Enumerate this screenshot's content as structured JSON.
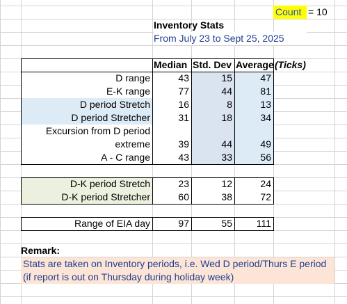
{
  "count": {
    "label": "Count",
    "value": "= 10"
  },
  "header": {
    "title": "Inventory Stats",
    "subtitle": "From July 23 to Sept 25, 2025"
  },
  "table": {
    "columns": [
      "Median",
      "Std. Dev",
      "Average",
      "(Ticks)"
    ],
    "groups": [
      {
        "rows": [
          {
            "label": "D range",
            "values": [
              43,
              15,
              47
            ]
          },
          {
            "label": "E-K range",
            "values": [
              77,
              44,
              81
            ]
          },
          {
            "label": "D period Stretch",
            "values": [
              16,
              8,
              13
            ]
          },
          {
            "label": "D period Stretcher",
            "values": [
              31,
              18,
              34
            ]
          },
          {
            "label": "Excursion from D period extreme",
            "values": [
              39,
              44,
              49
            ]
          },
          {
            "label": "A - C range",
            "values": [
              43,
              33,
              56
            ]
          }
        ]
      },
      {
        "rows": [
          {
            "label": "D-K period Stretch",
            "values": [
              23,
              12,
              24
            ]
          },
          {
            "label": "D-K period Stretcher",
            "values": [
              60,
              38,
              72
            ]
          }
        ]
      },
      {
        "rows": [
          {
            "label": "Range of EIA day",
            "values": [
              97,
              55,
              111
            ]
          }
        ]
      }
    ]
  },
  "remark": {
    "title": "Remark:",
    "text": "Stats are taken on Inventory periods, i.e. Wed D period/Thurs E period (if report is out on Thursday during holiday week)"
  }
}
